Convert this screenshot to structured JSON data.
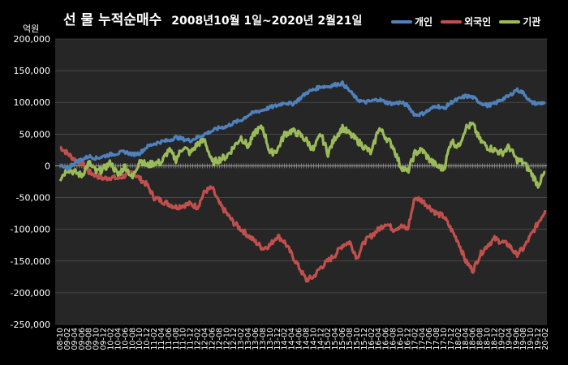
{
  "title": {
    "main": "선 물 누적순매수",
    "period": "2008년10월 1일~2020년 2월21일"
  },
  "unit": "억원",
  "colors": {
    "background": "#000000",
    "plot_background": "#262626",
    "gridline": "#5a5a5a",
    "zero_axis": "#9a9a9a"
  },
  "chart_data": {
    "type": "line",
    "title": "선 물 누적순매수 2008년10월 1일~2020년 2월21일",
    "ylabel": "억원",
    "ylim": [
      -250000,
      200000
    ],
    "yticks": [
      200000,
      150000,
      100000,
      50000,
      0,
      -50000,
      -100000,
      -150000,
      -200000,
      -250000
    ],
    "ytick_labels": [
      "200,000",
      "150,000",
      "100,000",
      "50,000",
      "0",
      "-50,000",
      "-100,000",
      "-150,000",
      "-200,000",
      "-250,000"
    ],
    "grid": true,
    "legend_position": "top-right",
    "x": [
      "08-10",
      "09-02",
      "09-04",
      "09-06",
      "09-08",
      "09-10",
      "09-12",
      "10-02",
      "10-04",
      "10-06",
      "10-08",
      "10-10",
      "10-12",
      "11-02",
      "11-04",
      "11-06",
      "11-08",
      "11-10",
      "11-12",
      "12-02",
      "12-04",
      "12-06",
      "12-08",
      "12-10",
      "12-12",
      "13-02",
      "13-04",
      "13-06",
      "13-08",
      "13-10",
      "13-12",
      "14-02",
      "14-04",
      "14-06",
      "14-08",
      "14-10",
      "14-12",
      "15-02",
      "15-04",
      "15-06",
      "15-08",
      "15-10",
      "15-12",
      "16-02",
      "16-04",
      "16-06",
      "16-08",
      "16-10",
      "16-12",
      "17-02",
      "17-04",
      "17-06",
      "17-08",
      "17-10",
      "17-12",
      "18-02",
      "18-04",
      "18-06",
      "18-08",
      "18-10",
      "18-12",
      "19-02",
      "19-04",
      "19-06",
      "19-08",
      "19-10",
      "19-12",
      "20-02"
    ],
    "series": [
      {
        "name": "개인",
        "color": "#4f81bd",
        "values": [
          0,
          -5000,
          5000,
          10000,
          15000,
          12000,
          15000,
          18000,
          20000,
          22000,
          18000,
          20000,
          30000,
          35000,
          38000,
          40000,
          45000,
          42000,
          40000,
          45000,
          50000,
          55000,
          60000,
          62000,
          68000,
          72000,
          80000,
          85000,
          88000,
          92000,
          95000,
          100000,
          97000,
          105000,
          115000,
          120000,
          125000,
          125000,
          128000,
          130000,
          118000,
          105000,
          100000,
          102000,
          105000,
          100000,
          98000,
          100000,
          95000,
          80000,
          82000,
          88000,
          95000,
          90000,
          100000,
          105000,
          110000,
          108000,
          100000,
          95000,
          98000,
          105000,
          110000,
          120000,
          115000,
          100000,
          98000,
          100000
        ]
      },
      {
        "name": "외국인",
        "color": "#c0504d",
        "values": [
          30000,
          20000,
          10000,
          5000,
          -10000,
          -15000,
          -20000,
          -18000,
          -20000,
          -15000,
          -10000,
          -20000,
          -30000,
          -50000,
          -55000,
          -60000,
          -65000,
          -62000,
          -60000,
          -65000,
          -40000,
          -35000,
          -60000,
          -75000,
          -90000,
          -100000,
          -110000,
          -120000,
          -130000,
          -125000,
          -110000,
          -120000,
          -140000,
          -160000,
          -180000,
          -175000,
          -160000,
          -150000,
          -140000,
          -125000,
          -120000,
          -145000,
          -120000,
          -110000,
          -100000,
          -90000,
          -100000,
          -95000,
          -100000,
          -50000,
          -55000,
          -65000,
          -75000,
          -80000,
          -100000,
          -120000,
          -150000,
          -165000,
          -140000,
          -125000,
          -115000,
          -120000,
          -125000,
          -140000,
          -130000,
          -110000,
          -90000,
          -70000
        ]
      },
      {
        "name": "기관",
        "color": "#9bbb59",
        "values": [
          -20000,
          -5000,
          -10000,
          -15000,
          5000,
          -10000,
          -5000,
          5000,
          -15000,
          0,
          -20000,
          10000,
          0,
          5000,
          5000,
          25000,
          10000,
          30000,
          20000,
          35000,
          40000,
          5000,
          10000,
          15000,
          30000,
          45000,
          30000,
          55000,
          60000,
          20000,
          25000,
          50000,
          55000,
          50000,
          40000,
          25000,
          50000,
          20000,
          45000,
          60000,
          50000,
          40000,
          30000,
          20000,
          60000,
          45000,
          30000,
          0,
          -10000,
          20000,
          25000,
          10000,
          0,
          -5000,
          40000,
          30000,
          60000,
          65000,
          40000,
          30000,
          25000,
          20000,
          30000,
          10000,
          5000,
          -10000,
          -30000,
          -10000
        ]
      }
    ]
  }
}
